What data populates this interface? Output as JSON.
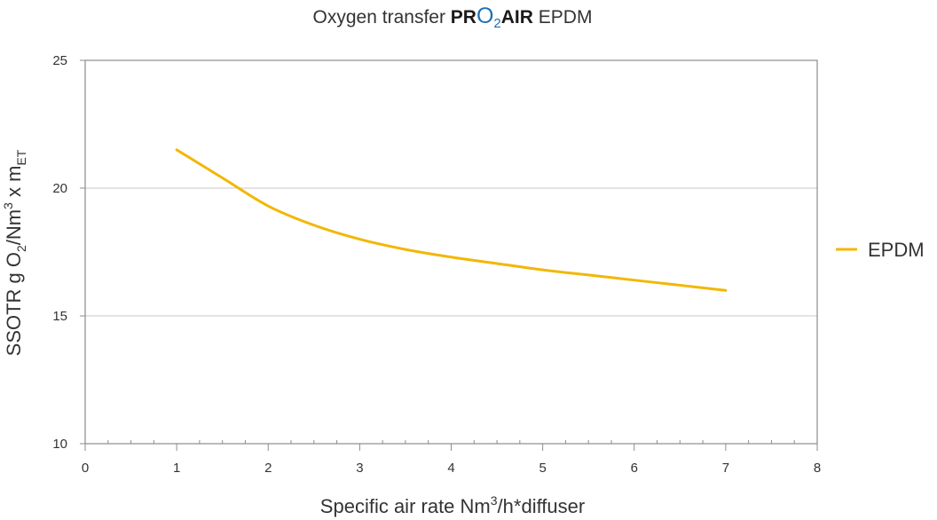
{
  "title": {
    "prefix": "Oxygen transfer ",
    "brand_pr": "PR",
    "brand_o": "O",
    "brand_sub": "2",
    "brand_air": "AIR",
    "suffix": " EPDM"
  },
  "colors": {
    "line": "#f2b705",
    "grid": "#c8c8c8",
    "brand": "#1f6fb5"
  },
  "chart_data": {
    "type": "line",
    "title": "Oxygen transfer PRO2AIR EPDM",
    "xlabel": {
      "main": "Specific air rate Nm",
      "sup": "3",
      "rest": "/h*diffuser"
    },
    "ylabel": {
      "part1": "SSOTR g O",
      "sub1": "2",
      "part2": "/Nm",
      "sup": "3",
      "part3": " x m",
      "sub2": "ET"
    },
    "xlim": [
      0,
      8
    ],
    "ylim": [
      10,
      25
    ],
    "x_ticks": [
      0,
      1,
      2,
      3,
      4,
      5,
      6,
      7,
      8
    ],
    "y_ticks": [
      10,
      15,
      20,
      25
    ],
    "grid": "horizontal",
    "legend_position": "right",
    "series": [
      {
        "name": "EPDM",
        "x": [
          1,
          1.5,
          2,
          2.5,
          3,
          3.5,
          4,
          4.5,
          5,
          5.5,
          6,
          6.5,
          7
        ],
        "y": [
          21.5,
          20.4,
          19.3,
          18.55,
          18.0,
          17.6,
          17.3,
          17.05,
          16.8,
          16.6,
          16.4,
          16.2,
          16.0
        ]
      }
    ]
  }
}
